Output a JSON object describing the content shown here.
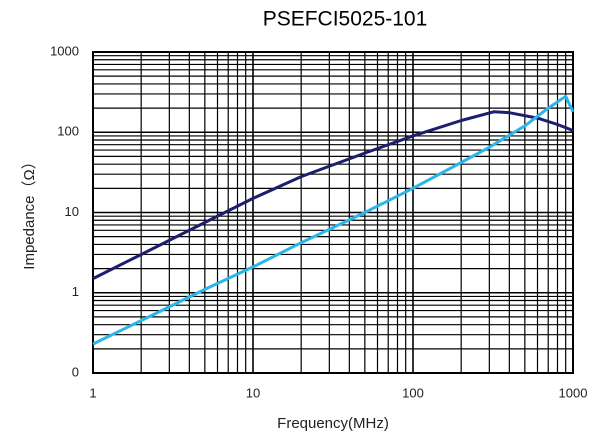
{
  "chart_data": {
    "type": "line",
    "title": "PSEFCI5025-101",
    "xlabel": "Frequency(MHz)",
    "ylabel": "Impedance（Ω）",
    "xscale": "log",
    "yscale": "log",
    "grid": true,
    "xlim": [
      1,
      1000
    ],
    "ylim": [
      0.1,
      1000
    ],
    "xticks": [
      1,
      10,
      100,
      1000
    ],
    "yticks": [
      {
        "value": 0.1,
        "label": "0"
      },
      1,
      10,
      100,
      1000
    ],
    "series": [
      {
        "color": "#1b1f6e",
        "x": [
          1,
          2,
          5,
          10,
          20,
          50,
          100,
          200,
          320,
          400,
          600,
          800,
          1000
        ],
        "values": [
          1.5,
          3,
          7.5,
          15,
          28,
          55,
          90,
          140,
          180,
          175,
          150,
          125,
          105
        ]
      },
      {
        "color": "#2bb5e8",
        "x": [
          1,
          2,
          5,
          10,
          20,
          50,
          100,
          200,
          300,
          500,
          700,
          900,
          1000
        ],
        "values": [
          0.23,
          0.45,
          1.1,
          2.1,
          4.2,
          10,
          20,
          42,
          65,
          120,
          200,
          280,
          180
        ]
      }
    ]
  }
}
